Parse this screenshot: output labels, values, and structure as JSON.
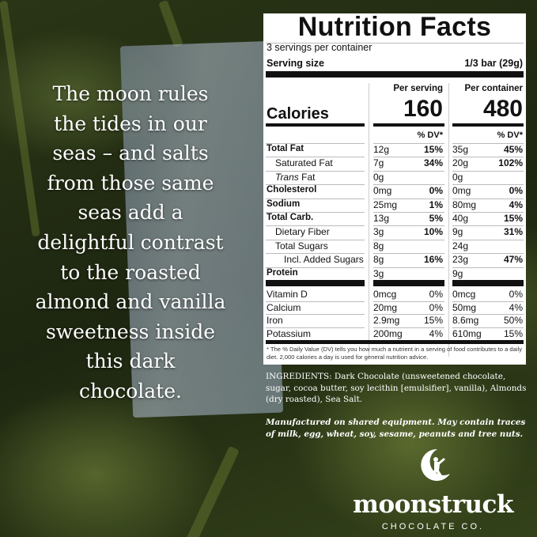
{
  "tagline": [
    "The moon rules",
    "the tides in our",
    "seas – and salts",
    "from those same",
    "seas add a",
    "delightful contrast",
    "to the roasted",
    "almond and vanilla",
    "sweetness inside",
    "this dark",
    "chocolate."
  ],
  "label": {
    "title": "Nutrition Facts",
    "servings": "3 servings per container",
    "serving_size_label": "Serving size",
    "serving_size": "1/3 bar (29g)",
    "per_serving": "Per serving",
    "per_container": "Per container",
    "calories_label": "Calories",
    "calories_serving": "160",
    "calories_container": "480",
    "dv_header": "% DV*",
    "nutrients": [
      {
        "name": "Total Fat",
        "bold": true,
        "s": "12g",
        "sdv": "15%",
        "c": "35g",
        "cdv": "45%"
      },
      {
        "name": "Saturated Fat",
        "indent": 1,
        "s": "7g",
        "sdv": "34%",
        "c": "20g",
        "cdv": "102%"
      },
      {
        "name": "Trans Fat",
        "indent": 1,
        "italic": "Trans",
        "s": "0g",
        "sdv": "",
        "c": "0g",
        "cdv": ""
      },
      {
        "name": "Cholesterol",
        "bold": true,
        "s": "0mg",
        "sdv": "0%",
        "c": "0mg",
        "cdv": "0%"
      },
      {
        "name": "Sodium",
        "bold": true,
        "s": "25mg",
        "sdv": "1%",
        "c": "80mg",
        "cdv": "4%"
      },
      {
        "name": "Total Carb.",
        "bold": true,
        "s": "13g",
        "sdv": "5%",
        "c": "40g",
        "cdv": "15%"
      },
      {
        "name": "Dietary Fiber",
        "indent": 1,
        "s": "3g",
        "sdv": "10%",
        "c": "9g",
        "cdv": "31%"
      },
      {
        "name": "Total Sugars",
        "indent": 1,
        "s": "8g",
        "sdv": "",
        "c": "24g",
        "cdv": ""
      },
      {
        "name": "Incl. Added Sugars",
        "indent": 2,
        "s": "8g",
        "sdv": "16%",
        "c": "23g",
        "cdv": "47%"
      },
      {
        "name": "Protein",
        "bold": true,
        "s": "3g",
        "sdv": "",
        "c": "9g",
        "cdv": ""
      }
    ],
    "micros": [
      {
        "name": "Vitamin D",
        "s": "0mcg",
        "sdv": "0%",
        "c": "0mcg",
        "cdv": "0%"
      },
      {
        "name": "Calcium",
        "s": "20mg",
        "sdv": "0%",
        "c": "50mg",
        "cdv": "4%"
      },
      {
        "name": "Iron",
        "s": "2.9mg",
        "sdv": "15%",
        "c": "8.6mg",
        "cdv": "50%"
      },
      {
        "name": "Potassium",
        "s": "200mg",
        "sdv": "4%",
        "c": "610mg",
        "cdv": "15%"
      }
    ],
    "footnote": "* The % Daily Value (DV) tells you how much a nutrient in a serving of food contributes to a daily diet. 2,000 calories a day is used for general nutrition advice."
  },
  "ingredients": "INGREDIENTS: Dark Chocolate (unsweetened chocolate, sugar, cocoa butter, soy lecithin [emulsifier], vanilla), Almonds (dry roasted), Sea Salt.",
  "allergy": "Manufactured on shared equipment. May contain traces of milk, egg, wheat, soy, sesame, peanuts and tree nuts.",
  "logo": {
    "brand": "moonstruck",
    "sub": "CHOCOLATE CO."
  }
}
